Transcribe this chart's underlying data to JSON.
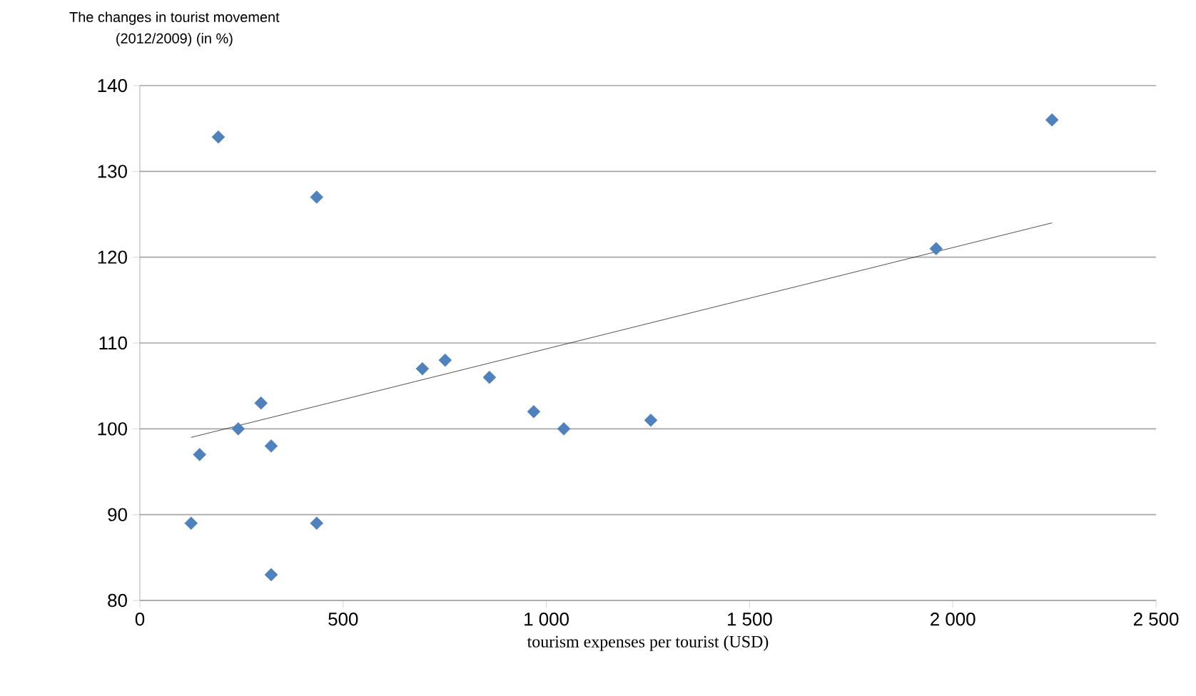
{
  "chart_data": {
    "type": "scatter",
    "ylabel": "The changes in tourist movement\n(2012/2009) (in %)",
    "xlabel": "tourism expenses per tourist (USD)",
    "xlim": [
      0,
      2500
    ],
    "ylim": [
      80,
      140
    ],
    "xticks": [
      0,
      500,
      {
        "value": 1000,
        "label": "1 000"
      },
      {
        "value": 1500,
        "label": "1 500"
      },
      {
        "value": 2000,
        "label": "2 000"
      },
      {
        "value": 2500,
        "label": "2 500"
      }
    ],
    "yticks": [
      80,
      90,
      100,
      110,
      120,
      130,
      140
    ],
    "grid": "y",
    "series": [
      {
        "marker": "diamond",
        "color": "#4f81bd",
        "x": [
          126,
          193,
          147,
          242,
          298,
          323,
          323,
          435,
          435,
          695,
          751,
          860,
          969,
          1043,
          1257,
          1959,
          2244
        ],
        "values": [
          89,
          134,
          97,
          100,
          103,
          98,
          83,
          127,
          89,
          107,
          108,
          106,
          102,
          100,
          101,
          121,
          136
        ]
      },
      {
        "type": "line",
        "marker": "none",
        "color": "#262626",
        "x": [
          126,
          2244
        ],
        "values": [
          99,
          124
        ]
      }
    ]
  }
}
